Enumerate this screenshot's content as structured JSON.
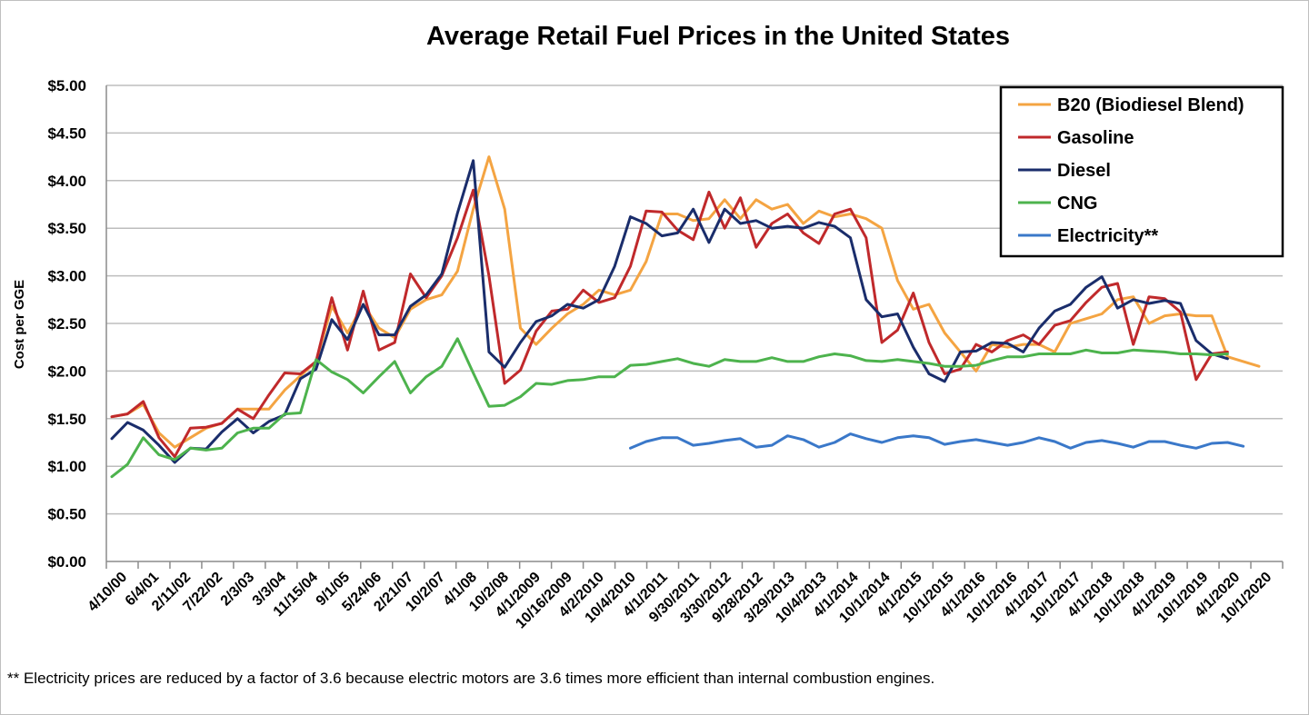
{
  "chart_data": {
    "type": "line",
    "title": "Average Retail Fuel Prices in the United States",
    "xlabel": "",
    "ylabel": "Cost per GGE",
    "ylim": [
      0,
      5
    ],
    "yticks": [
      "$0.00",
      "$0.50",
      "$1.00",
      "$1.50",
      "$2.00",
      "$2.50",
      "$3.00",
      "$3.50",
      "$4.00",
      "$4.50",
      "$5.00"
    ],
    "x_tick_labels": [
      "4/10/00",
      "6/4/01",
      "2/11/02",
      "7/22/02",
      "2/3/03",
      "3/3/04",
      "11/15/04",
      "9/1/05",
      "5/24/06",
      "2/21/07",
      "10/2/07",
      "4/1/08",
      "10/2/08",
      "4/1/2009",
      "10/16/2009",
      "4/2/2010",
      "10/4/2010",
      "4/1/2011",
      "9/30/2011",
      "3/30/2012",
      "9/28/2012",
      "3/29/2013",
      "10/4/2013",
      "4/1/2014",
      "10/1/2014",
      "4/1/2015",
      "10/1/2015",
      "4/1/2016",
      "10/1/2016",
      "4/1/2017",
      "10/1/2017",
      "4/1/2018",
      "10/1/2018",
      "4/1/2019",
      "10/1/2019",
      "4/1/2020",
      "10/1/2020"
    ],
    "grid": true,
    "legend_position": "top-right",
    "series": [
      {
        "name": "B20 (Biodiesel Blend)",
        "color": "#f4a442",
        "values": [
          1.52,
          1.55,
          1.65,
          1.35,
          1.2,
          1.3,
          1.4,
          1.45,
          1.6,
          1.6,
          1.6,
          1.8,
          1.95,
          2.1,
          2.68,
          2.4,
          2.7,
          2.45,
          2.35,
          2.65,
          2.75,
          2.8,
          3.05,
          3.7,
          4.25,
          3.7,
          2.45,
          2.28,
          2.45,
          2.6,
          2.7,
          2.85,
          2.8,
          2.85,
          3.15,
          3.65,
          3.65,
          3.58,
          3.6,
          3.8,
          3.6,
          3.8,
          3.7,
          3.75,
          3.55,
          3.68,
          3.62,
          3.65,
          3.6,
          3.5,
          2.95,
          2.65,
          2.7,
          2.4,
          2.2,
          2.0,
          2.28,
          2.25,
          2.28,
          2.28,
          2.2,
          2.5,
          2.55,
          2.6,
          2.75,
          2.78,
          2.5,
          2.58,
          2.6,
          2.58,
          2.58,
          2.15,
          2.1,
          2.05
        ]
      },
      {
        "name": "Gasoline",
        "color": "#c0292b",
        "values": [
          1.52,
          1.55,
          1.68,
          1.3,
          1.1,
          1.4,
          1.41,
          1.45,
          1.6,
          1.5,
          1.75,
          1.98,
          1.97,
          2.1,
          2.77,
          2.22,
          2.84,
          2.22,
          2.3,
          3.02,
          2.77,
          3.0,
          3.4,
          3.9,
          3.0,
          1.87,
          2.01,
          2.42,
          2.63,
          2.65,
          2.85,
          2.72,
          2.77,
          3.1,
          3.68,
          3.67,
          3.48,
          3.38,
          3.88,
          3.5,
          3.82,
          3.3,
          3.55,
          3.65,
          3.45,
          3.34,
          3.65,
          3.7,
          3.4,
          2.3,
          2.43,
          2.82,
          2.3,
          1.97,
          2.02,
          2.28,
          2.2,
          2.32,
          2.38,
          2.28,
          2.48,
          2.53,
          2.72,
          2.88,
          2.92,
          2.28,
          2.78,
          2.76,
          2.62,
          1.91,
          2.18,
          2.2
        ]
      },
      {
        "name": "Diesel",
        "color": "#1a2d6b",
        "values": [
          1.29,
          1.46,
          1.38,
          1.22,
          1.04,
          1.19,
          1.18,
          1.36,
          1.5,
          1.35,
          1.47,
          1.54,
          1.92,
          2.02,
          2.54,
          2.33,
          2.7,
          2.38,
          2.38,
          2.68,
          2.8,
          3.02,
          3.66,
          4.21,
          2.2,
          2.04,
          2.3,
          2.52,
          2.58,
          2.7,
          2.66,
          2.75,
          3.1,
          3.62,
          3.55,
          3.42,
          3.45,
          3.7,
          3.35,
          3.7,
          3.55,
          3.58,
          3.5,
          3.52,
          3.5,
          3.56,
          3.52,
          3.4,
          2.75,
          2.57,
          2.6,
          2.25,
          1.97,
          1.89,
          2.2,
          2.21,
          2.3,
          2.29,
          2.2,
          2.45,
          2.63,
          2.7,
          2.88,
          2.99,
          2.66,
          2.75,
          2.71,
          2.74,
          2.71,
          2.32,
          2.18,
          2.13
        ]
      },
      {
        "name": "CNG",
        "color": "#4db34d",
        "values": [
          0.89,
          1.02,
          1.3,
          1.12,
          1.07,
          1.19,
          1.17,
          1.19,
          1.35,
          1.4,
          1.4,
          1.55,
          1.56,
          2.12,
          1.99,
          1.91,
          1.77,
          1.94,
          2.1,
          1.77,
          1.94,
          2.05,
          2.34,
          1.98,
          1.63,
          1.64,
          1.73,
          1.87,
          1.86,
          1.9,
          1.91,
          1.94,
          1.94,
          2.06,
          2.07,
          2.1,
          2.13,
          2.08,
          2.05,
          2.12,
          2.1,
          2.1,
          2.14,
          2.1,
          2.1,
          2.15,
          2.18,
          2.16,
          2.11,
          2.1,
          2.12,
          2.1,
          2.08,
          2.05,
          2.05,
          2.06,
          2.11,
          2.15,
          2.15,
          2.18,
          2.18,
          2.18,
          2.22,
          2.19,
          2.19,
          2.22,
          2.21,
          2.2,
          2.18,
          2.18,
          2.17,
          2.18
        ]
      },
      {
        "name": "Electricity**",
        "color": "#3a78c9",
        "x_start_index": 33,
        "values": [
          1.19,
          1.26,
          1.3,
          1.3,
          1.22,
          1.24,
          1.27,
          1.29,
          1.2,
          1.22,
          1.32,
          1.28,
          1.2,
          1.25,
          1.34,
          1.29,
          1.25,
          1.3,
          1.32,
          1.3,
          1.23,
          1.26,
          1.28,
          1.25,
          1.22,
          1.25,
          1.3,
          1.26,
          1.19,
          1.25,
          1.27,
          1.24,
          1.2,
          1.26,
          1.26,
          1.22,
          1.19,
          1.24,
          1.25,
          1.21
        ]
      }
    ]
  },
  "footnote": "** Electricity prices are reduced by a factor of 3.6 because electric motors are 3.6 times more efficient than internal combustion engines."
}
